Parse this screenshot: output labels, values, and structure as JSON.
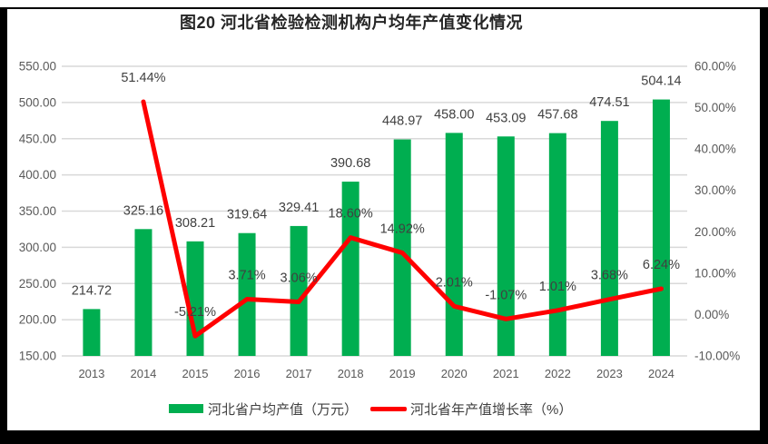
{
  "title": "图20 河北省检验检测机构户均年产值变化情况",
  "colors": {
    "bar": "#00AE50",
    "line": "#FF0000",
    "grid": "#D9D9D9",
    "axis_text": "#595959",
    "label_text": "#404040",
    "frame": "#000000"
  },
  "legend": [
    {
      "type": "bar",
      "label": "河北省户均产值（万元）",
      "color": "#00AE50"
    },
    {
      "type": "line",
      "label": "河北省年产值增长率（%）",
      "color": "#FF0000"
    }
  ],
  "chart_data": {
    "type": "combo",
    "title": "图20 河北省检验检测机构户均年产值变化情况",
    "categories": [
      "2013",
      "2014",
      "2015",
      "2016",
      "2017",
      "2018",
      "2019",
      "2020",
      "2021",
      "2022",
      "2023",
      "2024"
    ],
    "series": [
      {
        "name": "河北省户均产值（万元）",
        "type": "bar",
        "axis": "left",
        "color": "#00AE50",
        "values": [
          214.72,
          325.16,
          308.21,
          319.64,
          329.41,
          390.68,
          448.97,
          458.0,
          453.09,
          457.68,
          474.51,
          504.14
        ],
        "labels": [
          "214.72",
          "325.16",
          "308.21",
          "319.64",
          "329.41",
          "390.68",
          "448.97",
          "458.00",
          "453.09",
          "457.68",
          "474.51",
          "504.14"
        ]
      },
      {
        "name": "河北省年产值增长率（%）",
        "type": "line",
        "axis": "right",
        "color": "#FF0000",
        "values": [
          null,
          51.44,
          -5.21,
          3.71,
          3.06,
          18.6,
          14.92,
          2.01,
          -1.07,
          1.01,
          3.68,
          6.24
        ],
        "labels": [
          null,
          "51.44%",
          "-5.21%",
          "3.71%",
          "3.06%",
          "18.60%",
          "14.92%",
          "2.01%",
          "-1.07%",
          "1.01%",
          "3.68%",
          "6.24%"
        ]
      }
    ],
    "left_axis": {
      "min": 150,
      "max": 550,
      "step": 50,
      "tick_labels": [
        "550.00",
        "500.00",
        "450.00",
        "400.00",
        "350.00",
        "300.00",
        "250.00",
        "200.00",
        "150.00"
      ]
    },
    "right_axis": {
      "min": -10,
      "max": 60,
      "step": 10,
      "tick_labels": [
        "60.00%",
        "50.00%",
        "40.00%",
        "30.00%",
        "20.00%",
        "10.00%",
        "0.00%",
        "-10.00%"
      ]
    },
    "grid": true,
    "legend_position": "bottom"
  }
}
